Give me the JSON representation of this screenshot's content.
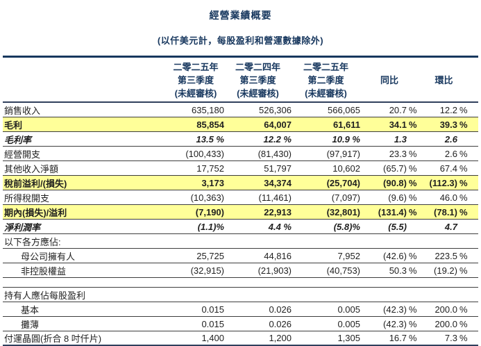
{
  "title": "經營業績概要",
  "subtitle": "(以仟美元計，每股盈利和營運數據除外)",
  "colors": {
    "heading_navy": "#17375E",
    "highlight_yellow": "#FFFF99",
    "rule_dark": "#3d3d3d"
  },
  "table": {
    "columns": [
      {
        "lines": [
          "二零二五年",
          "第三季度",
          "(未經審核)"
        ]
      },
      {
        "lines": [
          "二零二四年",
          "第三季度",
          "(未經審核)"
        ]
      },
      {
        "lines": [
          "二零二五年",
          "第二季度",
          "(未經審核)"
        ]
      },
      {
        "lines": [
          "",
          "同比",
          ""
        ]
      },
      {
        "lines": [
          "",
          "環比",
          ""
        ]
      }
    ],
    "rows": [
      {
        "label": "銷售收入",
        "values": [
          "635,180",
          "526,306",
          "566,065",
          "20.7 %",
          "12.2 %"
        ],
        "style": "normal"
      },
      {
        "label": "毛利",
        "values": [
          "85,854",
          "64,007",
          "61,611",
          "34.1 %",
          "39.3 %"
        ],
        "style": "highlight"
      },
      {
        "label": "毛利率",
        "values": [
          "13.5 %",
          "12.2 %",
          "10.9 %",
          "1.3",
          "2.6"
        ],
        "style": "italic"
      },
      {
        "label": "經營開支",
        "values": [
          "(100,433)",
          "(81,430)",
          "(97,917)",
          "23.3 %",
          "2.6 %"
        ],
        "style": "normal"
      },
      {
        "label": "其他收入淨額",
        "values": [
          "17,752",
          "51,797",
          "10,602",
          "(65.7)%",
          "67.4 %"
        ],
        "style": "normal"
      },
      {
        "label": "稅前溢利/(損失)",
        "values": [
          "3,173",
          "34,374",
          "(25,704)",
          "(90.8)%",
          "(112.3)%"
        ],
        "style": "highlight"
      },
      {
        "label": "所得稅開支",
        "values": [
          "(10,363)",
          "(11,461)",
          "(7,097)",
          "(9.6)%",
          "46.0 %"
        ],
        "style": "normal"
      },
      {
        "label": "期內(損失)/溢利",
        "values": [
          "(7,190)",
          "22,913",
          "(32,801)",
          "(131.4)%",
          "(78.1)%"
        ],
        "style": "highlight"
      },
      {
        "label": "淨利潤率",
        "values": [
          "(1.1)%",
          "4.4 %",
          "(5.8)%",
          "(5.5)",
          "4.7"
        ],
        "style": "italic"
      },
      {
        "label": "以下各方應佔:",
        "values": [
          "",
          "",
          "",
          "",
          ""
        ],
        "style": "section"
      },
      {
        "label": "母公司擁有人",
        "values": [
          "25,725",
          "44,816",
          "7,952",
          "(42.6)%",
          "223.5 %"
        ],
        "style": "indent"
      },
      {
        "label": "非控股權益",
        "values": [
          "(32,915)",
          "(21,903)",
          "(40,753)",
          "50.3 %",
          "(19.2)%"
        ],
        "style": "indent"
      },
      {
        "label": "",
        "values": [
          "",
          "",
          "",
          "",
          ""
        ],
        "style": "spacer"
      },
      {
        "label": "持有人應佔每股盈利",
        "values": [
          "",
          "",
          "",
          "",
          ""
        ],
        "style": "section"
      },
      {
        "label": "基本",
        "values": [
          "0.015",
          "0.026",
          "0.005",
          "(42.3)%",
          "200.0 %"
        ],
        "style": "indent"
      },
      {
        "label": "攤薄",
        "values": [
          "0.015",
          "0.026",
          "0.005",
          "(42.3)%",
          "200.0 %"
        ],
        "style": "indent"
      },
      {
        "label": "付運晶圓(折合 8 吋仟片)",
        "values": [
          "1,400",
          "1,200",
          "1,305",
          "16.7 %",
          "7.3 %"
        ],
        "style": "normal"
      }
    ]
  }
}
